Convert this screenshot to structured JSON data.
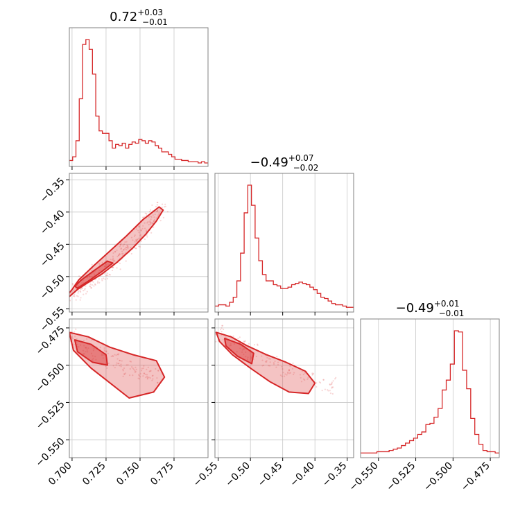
{
  "chart_data": {
    "type": "corner",
    "color": "#d62728",
    "grid": true,
    "parameters": [
      {
        "median": "0.72",
        "plus": "+0.03",
        "minus": "−0.01",
        "range": [
          0.698,
          0.8
        ],
        "ticks": [
          0.7,
          0.725,
          0.75,
          0.775
        ],
        "tick_labels": [
          "0.700",
          "0.725",
          "0.750",
          "0.775"
        ]
      },
      {
        "median": "−0.49",
        "plus": "+0.07",
        "minus": "−0.02",
        "range": [
          -0.555,
          -0.34
        ],
        "ticks": [
          -0.55,
          -0.5,
          -0.45,
          -0.4,
          -0.35
        ],
        "tick_labels": [
          "−0.55",
          "−0.50",
          "−0.45",
          "−0.40",
          "−0.35"
        ],
        "y_ticks": [
          -0.35,
          -0.4,
          -0.45,
          -0.5,
          -0.55
        ],
        "y_tick_labels": [
          "−0.35",
          "−0.40",
          "−0.45",
          "−0.50",
          "−0.55"
        ]
      },
      {
        "median": "−0.49",
        "plus": "+0.01",
        "minus": "−0.01",
        "range": [
          -0.562,
          -0.469
        ],
        "ticks": [
          -0.55,
          -0.525,
          -0.5,
          -0.475
        ],
        "tick_labels": [
          "−0.550",
          "−0.525",
          "−0.500",
          "−0.475"
        ],
        "y_ticks": [
          -0.475,
          -0.5,
          -0.525,
          -0.55
        ],
        "y_tick_labels": [
          "−0.475",
          "−0.500",
          "−0.525",
          "−0.550"
        ]
      }
    ],
    "histograms": [
      {
        "bins": [
          0.698,
          0.8
        ],
        "counts": [
          2,
          5,
          18,
          52,
          96,
          100,
          92,
          72,
          38,
          26,
          24,
          24,
          18,
          12,
          15,
          14,
          16,
          12,
          15,
          17,
          16,
          19,
          18,
          16,
          18,
          17,
          14,
          12,
          9,
          9,
          7,
          5,
          3,
          3,
          2,
          2,
          1,
          1,
          1,
          0,
          1,
          0
        ]
      },
      {
        "bins": [
          -0.555,
          -0.34
        ],
        "counts": [
          2,
          3,
          3,
          2,
          5,
          9,
          22,
          44,
          76,
          98,
          82,
          56,
          38,
          27,
          22,
          22,
          19,
          18,
          16,
          16,
          17,
          19,
          20,
          21,
          20,
          19,
          17,
          15,
          12,
          9,
          8,
          6,
          4,
          3,
          3,
          2,
          1,
          1
        ]
      },
      {
        "bins": [
          -0.562,
          -0.469
        ],
        "counts": [
          1,
          1,
          1,
          1,
          2,
          2,
          2,
          3,
          4,
          5,
          7,
          9,
          11,
          13,
          16,
          18,
          24,
          25,
          30,
          37,
          52,
          60,
          73,
          100,
          99,
          68,
          53,
          29,
          16,
          8,
          3,
          2,
          2,
          1
        ]
      }
    ],
    "pairs": [
      {
        "x_param": 0,
        "y_param": 1,
        "samples": [
          [
            0.7,
            -0.525
          ],
          [
            0.705,
            -0.52
          ],
          [
            0.71,
            -0.512
          ],
          [
            0.715,
            -0.503
          ],
          [
            0.72,
            -0.494
          ],
          [
            0.725,
            -0.486
          ],
          [
            0.73,
            -0.476
          ],
          [
            0.735,
            -0.466
          ],
          [
            0.74,
            -0.455
          ],
          [
            0.745,
            -0.445
          ],
          [
            0.75,
            -0.433
          ],
          [
            0.755,
            -0.42
          ],
          [
            0.76,
            -0.408
          ],
          [
            0.765,
            -0.396
          ]
        ],
        "contours": [
          [
            [
              0.698,
              -0.531
            ],
            [
              0.704,
              -0.52
            ],
            [
              0.712,
              -0.509
            ],
            [
              0.722,
              -0.496
            ],
            [
              0.733,
              -0.478
            ],
            [
              0.745,
              -0.455
            ],
            [
              0.754,
              -0.435
            ],
            [
              0.762,
              -0.414
            ],
            [
              0.767,
              -0.397
            ],
            [
              0.764,
              -0.392
            ],
            [
              0.752,
              -0.412
            ],
            [
              0.74,
              -0.437
            ],
            [
              0.727,
              -0.462
            ],
            [
              0.715,
              -0.485
            ],
            [
              0.705,
              -0.505
            ],
            [
              0.7,
              -0.52
            ],
            [
              0.697,
              -0.528
            ]
          ],
          [
            [
              0.704,
              -0.518
            ],
            [
              0.712,
              -0.507
            ],
            [
              0.722,
              -0.492
            ],
            [
              0.73,
              -0.479
            ],
            [
              0.726,
              -0.476
            ],
            [
              0.716,
              -0.491
            ],
            [
              0.707,
              -0.505
            ],
            [
              0.702,
              -0.515
            ]
          ]
        ]
      },
      {
        "x_param": 0,
        "y_param": 2,
        "samples": [
          [
            0.7,
            -0.481
          ],
          [
            0.71,
            -0.487
          ],
          [
            0.72,
            -0.492
          ],
          [
            0.73,
            -0.497
          ],
          [
            0.74,
            -0.502
          ],
          [
            0.75,
            -0.506
          ],
          [
            0.76,
            -0.508
          ]
        ],
        "contours": [
          [
            [
              0.698,
              -0.478
            ],
            [
              0.712,
              -0.481
            ],
            [
              0.728,
              -0.488
            ],
            [
              0.745,
              -0.493
            ],
            [
              0.762,
              -0.497
            ],
            [
              0.768,
              -0.508
            ],
            [
              0.76,
              -0.518
            ],
            [
              0.742,
              -0.522
            ],
            [
              0.728,
              -0.512
            ],
            [
              0.714,
              -0.502
            ],
            [
              0.701,
              -0.49
            ]
          ],
          [
            [
              0.702,
              -0.483
            ],
            [
              0.714,
              -0.486
            ],
            [
              0.725,
              -0.493
            ],
            [
              0.726,
              -0.5
            ],
            [
              0.715,
              -0.498
            ],
            [
              0.704,
              -0.491
            ]
          ]
        ]
      },
      {
        "x_param": 1,
        "y_param": 2,
        "samples": [
          [
            -0.55,
            -0.479
          ],
          [
            -0.52,
            -0.486
          ],
          [
            -0.5,
            -0.491
          ],
          [
            -0.47,
            -0.497
          ],
          [
            -0.44,
            -0.503
          ],
          [
            -0.41,
            -0.509
          ],
          [
            -0.38,
            -0.514
          ]
        ],
        "contours": [
          [
            [
              -0.553,
              -0.478
            ],
            [
              -0.53,
              -0.481
            ],
            [
              -0.505,
              -0.487
            ],
            [
              -0.475,
              -0.493
            ],
            [
              -0.445,
              -0.498
            ],
            [
              -0.415,
              -0.504
            ],
            [
              -0.4,
              -0.512
            ],
            [
              -0.41,
              -0.519
            ],
            [
              -0.44,
              -0.518
            ],
            [
              -0.47,
              -0.511
            ],
            [
              -0.5,
              -0.502
            ],
            [
              -0.528,
              -0.493
            ],
            [
              -0.548,
              -0.484
            ]
          ],
          [
            [
              -0.54,
              -0.482
            ],
            [
              -0.515,
              -0.486
            ],
            [
              -0.495,
              -0.492
            ],
            [
              -0.498,
              -0.499
            ],
            [
              -0.52,
              -0.494
            ],
            [
              -0.538,
              -0.487
            ]
          ]
        ]
      }
    ]
  }
}
